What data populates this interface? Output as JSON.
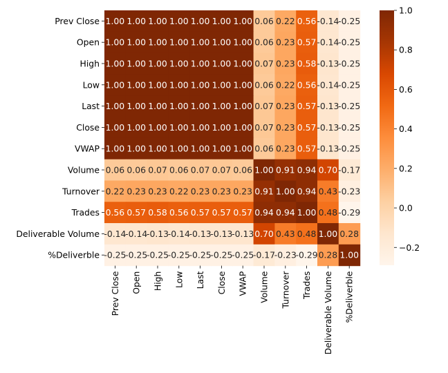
{
  "chart_data": {
    "type": "heatmap",
    "title": "",
    "xlabel": "",
    "ylabel": "",
    "rows": [
      "Prev Close",
      "Open",
      "High",
      "Low",
      "Last",
      "Close",
      "VWAP",
      "Volume",
      "Turnover",
      "Trades",
      "Deliverable Volume",
      "%Deliverble"
    ],
    "columns": [
      "Prev Close",
      "Open",
      "High",
      "Low",
      "Last",
      "Close",
      "VWAP",
      "Volume",
      "Turnover",
      "Trades",
      "Deliverable Volume",
      "%Deliverble"
    ],
    "values": [
      [
        1.0,
        1.0,
        1.0,
        1.0,
        1.0,
        1.0,
        1.0,
        0.06,
        0.22,
        0.56,
        -0.14,
        -0.25
      ],
      [
        1.0,
        1.0,
        1.0,
        1.0,
        1.0,
        1.0,
        1.0,
        0.06,
        0.23,
        0.57,
        -0.14,
        -0.25
      ],
      [
        1.0,
        1.0,
        1.0,
        1.0,
        1.0,
        1.0,
        1.0,
        0.07,
        0.23,
        0.58,
        -0.13,
        -0.25
      ],
      [
        1.0,
        1.0,
        1.0,
        1.0,
        1.0,
        1.0,
        1.0,
        0.06,
        0.22,
        0.56,
        -0.14,
        -0.25
      ],
      [
        1.0,
        1.0,
        1.0,
        1.0,
        1.0,
        1.0,
        1.0,
        0.07,
        0.23,
        0.57,
        -0.13,
        -0.25
      ],
      [
        1.0,
        1.0,
        1.0,
        1.0,
        1.0,
        1.0,
        1.0,
        0.07,
        0.23,
        0.57,
        -0.13,
        -0.25
      ],
      [
        1.0,
        1.0,
        1.0,
        1.0,
        1.0,
        1.0,
        1.0,
        0.06,
        0.23,
        0.57,
        -0.13,
        -0.25
      ],
      [
        0.06,
        0.06,
        0.07,
        0.06,
        0.07,
        0.07,
        0.06,
        1.0,
        0.91,
        0.94,
        0.7,
        -0.17
      ],
      [
        0.22,
        0.23,
        0.23,
        0.22,
        0.23,
        0.23,
        0.23,
        0.91,
        1.0,
        0.94,
        0.43,
        -0.23
      ],
      [
        0.56,
        0.57,
        0.58,
        0.56,
        0.57,
        0.57,
        0.57,
        0.94,
        0.94,
        1.0,
        0.48,
        -0.29
      ],
      [
        -0.14,
        -0.14,
        -0.13,
        -0.14,
        -0.13,
        -0.13,
        -0.13,
        0.7,
        0.43,
        0.48,
        1.0,
        0.28
      ],
      [
        -0.25,
        -0.25,
        -0.25,
        -0.25,
        -0.25,
        -0.25,
        -0.25,
        -0.17,
        -0.23,
        -0.29,
        0.28,
        1.0
      ]
    ],
    "value_format": "2 decimals",
    "colormap": "Oranges",
    "colors": {
      "low": "#fff5eb",
      "high": "#7f2704",
      "text_on_dark": "#ffffff",
      "text_on_light": "#262626"
    },
    "colorbar": {
      "range": [
        -0.29,
        1.0
      ],
      "ticks": [
        -0.2,
        0.0,
        0.2,
        0.4,
        0.6,
        0.8,
        1.0
      ],
      "tick_labels": [
        "−0.2",
        "0.0",
        "0.2",
        "0.4",
        "0.6",
        "0.8",
        "1.0"
      ]
    },
    "grid": false,
    "legend": "colorbar-right"
  }
}
